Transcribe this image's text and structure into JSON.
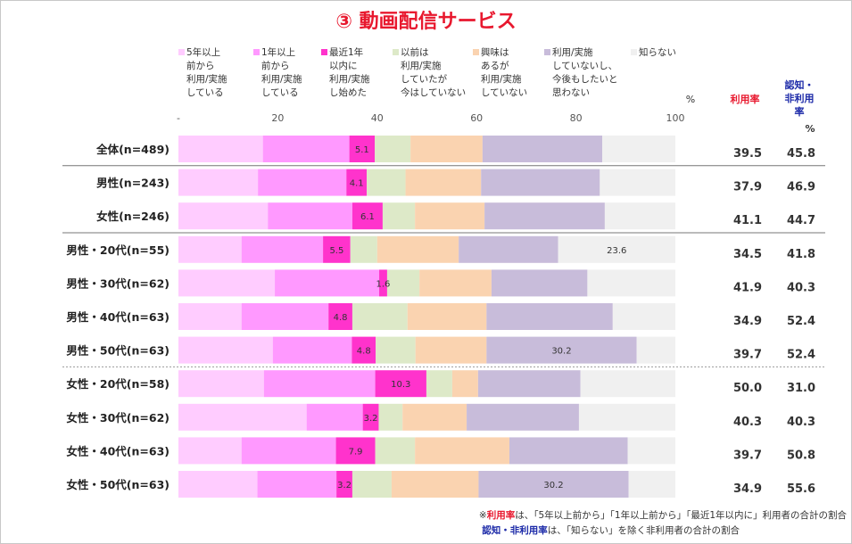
{
  "title": "③ 動画配信サービス",
  "legend": [
    {
      "label": "5年以上\n前から\n利用/実施\nしている",
      "color": "#ffccff"
    },
    {
      "label": "1年以上\n前から\n利用/実施\nしている",
      "color": "#ff99ff"
    },
    {
      "label": "最近1年\n以内に\n利用/実施\nし始めた",
      "color": "#ff33cc"
    },
    {
      "label": "以前は\n利用/実施\nしていたが\n今はしていない",
      "color": "#dde9c8"
    },
    {
      "label": "興味は\nあるが\n利用/実施\nしていない",
      "color": "#fad3b0"
    },
    {
      "label": "利用/実施\nしていないし、\n今後もしたいと\n思わない",
      "color": "#c8bcda"
    },
    {
      "label": "知らない",
      "color": "#f0f0f0"
    }
  ],
  "percent_unit": "%",
  "headers": {
    "usage_rate": "利用率",
    "awareness_rate": "認知・\n非利用\n率",
    "percent": "%"
  },
  "chart_data": {
    "type": "bar",
    "orientation": "horizontal-stacked-100",
    "xlim": [
      0,
      100
    ],
    "ticks": [
      "-",
      "20",
      "40",
      "60",
      "80",
      "100"
    ],
    "categories": [
      "全体(n=489)",
      "男性(n=243)",
      "女性(n=246)",
      "男性・20代(n=55)",
      "男性・30代(n=62)",
      "男性・40代(n=63)",
      "男性・50代(n=63)",
      "女性・20代(n=58)",
      "女性・30代(n=62)",
      "女性・40代(n=63)",
      "女性・50代(n=63)"
    ],
    "series": [
      {
        "name": "5年以上前から利用/実施している",
        "values": [
          17.0,
          16.0,
          18.0,
          12.7,
          19.4,
          12.7,
          19.0,
          17.2,
          25.8,
          12.7,
          15.9
        ]
      },
      {
        "name": "1年以上前から利用/実施している",
        "values": [
          17.4,
          17.8,
          17.0,
          16.4,
          21.0,
          17.5,
          15.9,
          22.4,
          11.3,
          19.0,
          15.9
        ]
      },
      {
        "name": "最近1年以内に利用/実施し始めた",
        "values": [
          5.1,
          4.1,
          6.1,
          5.5,
          1.6,
          4.8,
          4.8,
          10.3,
          3.2,
          7.9,
          3.2
        ]
      },
      {
        "name": "以前は利用/実施していたが今はしていない",
        "values": [
          7.2,
          7.8,
          6.5,
          5.4,
          6.5,
          11.1,
          8.0,
          5.2,
          4.8,
          8.0,
          7.9
        ]
      },
      {
        "name": "興味はあるが利用/実施していない",
        "values": [
          14.5,
          15.2,
          14.0,
          16.4,
          14.5,
          15.9,
          14.3,
          5.2,
          12.9,
          19.0,
          17.5
        ]
      },
      {
        "name": "利用/実施していないし、今後もしたいと思わない",
        "values": [
          24.1,
          23.9,
          24.2,
          20.0,
          19.3,
          25.4,
          30.2,
          20.6,
          22.6,
          23.8,
          30.2
        ]
      },
      {
        "name": "知らない",
        "values": [
          14.7,
          15.2,
          14.2,
          23.6,
          17.7,
          12.6,
          7.8,
          19.1,
          19.4,
          9.6,
          9.4
        ]
      }
    ],
    "data_labels": [
      {
        "row": 0,
        "series": 2,
        "text": "5.1"
      },
      {
        "row": 1,
        "series": 2,
        "text": "4.1"
      },
      {
        "row": 2,
        "series": 2,
        "text": "6.1"
      },
      {
        "row": 3,
        "series": 2,
        "text": "5.5"
      },
      {
        "row": 3,
        "series": 6,
        "text": "23.6"
      },
      {
        "row": 4,
        "series": 2,
        "text": "1.6"
      },
      {
        "row": 5,
        "series": 2,
        "text": "4.8"
      },
      {
        "row": 6,
        "series": 2,
        "text": "4.8"
      },
      {
        "row": 6,
        "series": 5,
        "text": "30.2"
      },
      {
        "row": 7,
        "series": 2,
        "text": "10.3"
      },
      {
        "row": 8,
        "series": 2,
        "text": "3.2"
      },
      {
        "row": 9,
        "series": 2,
        "text": "7.9"
      },
      {
        "row": 10,
        "series": 2,
        "text": "3.2"
      },
      {
        "row": 10,
        "series": 5,
        "text": "30.2"
      }
    ],
    "usage_rate": [
      "39.5",
      "37.9",
      "41.1",
      "34.5",
      "41.9",
      "34.9",
      "39.7",
      "50.0",
      "40.3",
      "39.7",
      "34.9"
    ],
    "awareness_rate": [
      "45.8",
      "46.9",
      "44.7",
      "41.8",
      "40.3",
      "52.4",
      "52.4",
      "31.0",
      "40.3",
      "50.8",
      "55.6"
    ],
    "group_separators_after_rows": [
      0,
      2,
      6
    ],
    "separator_styles": [
      "solid",
      "solid",
      "dotted"
    ]
  },
  "notes": {
    "line1_prefix": "※",
    "line1_term": "利用率",
    "line1_text": "は、「5年以上前から」「1年以上前から」「最近1年以内に」利用者の合計の割合",
    "line2_term": "認知・非利用率",
    "line2_text": "は、「知らない」を除く非利用者の合計の割合"
  }
}
